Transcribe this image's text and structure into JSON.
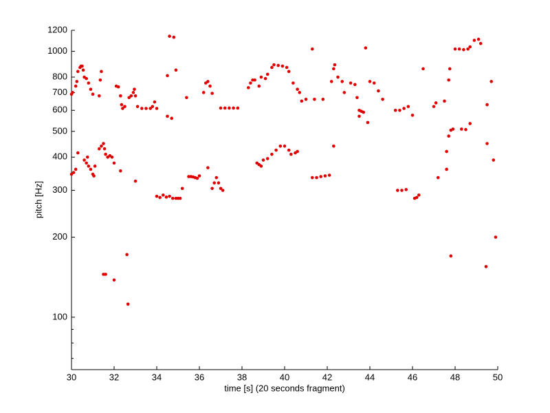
{
  "chart_data": {
    "type": "scatter",
    "xlabel": "time [s] (20 seconds fragment)",
    "ylabel": "pitch [Hz]",
    "color": "#e00000",
    "log_y": true,
    "xlim": [
      30,
      50
    ],
    "xticks": [
      30,
      32,
      34,
      36,
      38,
      40,
      42,
      44,
      46,
      48,
      50
    ],
    "ylim": [
      63.5,
      1200
    ],
    "yticks": [
      100,
      200,
      300,
      400,
      500,
      600,
      700,
      800,
      1000,
      1200
    ],
    "yminorticks": [
      70,
      80,
      90
    ],
    "x": [
      30.0,
      30.05,
      30.2,
      30.25,
      30.3,
      30.4,
      30.45,
      30.5,
      30.55,
      30.6,
      30.7,
      30.8,
      30.9,
      31.0,
      31.3,
      31.35,
      31.4,
      30.0,
      30.1,
      30.2,
      30.3,
      30.6,
      30.7,
      30.75,
      30.8,
      30.9,
      31.0,
      31.05,
      31.1,
      31.3,
      31.4,
      31.5,
      31.55,
      31.6,
      31.7,
      31.8,
      31.9,
      32.0,
      32.3,
      31.5,
      31.6,
      32.0,
      32.6,
      32.65,
      33.0,
      32.1,
      32.2,
      32.3,
      32.35,
      32.4,
      32.5,
      32.7,
      32.8,
      32.9,
      32.95,
      33.0,
      33.1,
      33.3,
      33.5,
      33.7,
      33.8,
      33.9,
      34.0,
      34.0,
      34.15,
      34.3,
      34.45,
      34.6,
      34.75,
      34.9,
      35.0,
      34.5,
      34.6,
      34.8,
      34.5,
      34.7,
      34.9,
      35.1,
      35.2,
      35.4,
      35.5,
      35.6,
      35.7,
      35.8,
      35.9,
      36.0,
      36.2,
      36.3,
      36.4,
      36.5,
      36.6,
      36.4,
      36.6,
      36.7,
      36.8,
      36.9,
      37.0,
      37.1,
      37.0,
      37.2,
      37.4,
      37.6,
      37.8,
      38.3,
      38.4,
      38.5,
      38.6,
      38.7,
      38.8,
      38.9,
      39.0,
      38.8,
      38.9,
      39.1,
      39.2,
      39.4,
      39.5,
      39.7,
      39.9,
      40.1,
      40.2,
      40.4,
      40.6,
      40.7,
      39.2,
      39.4,
      39.6,
      39.8,
      40.0,
      40.2,
      40.3,
      40.5,
      40.6,
      40.8,
      41.0,
      41.3,
      41.3,
      41.5,
      41.7,
      41.9,
      42.1,
      41.4,
      41.8,
      42.2,
      42.3,
      42.35,
      42.5,
      42.3,
      42.7,
      42.8,
      43.1,
      43.3,
      43.4,
      43.5,
      43.6,
      43.7,
      43.5,
      43.8,
      43.9,
      44.0,
      44.2,
      44.4,
      44.6,
      45.2,
      45.4,
      45.6,
      45.8,
      45.3,
      45.5,
      45.7,
      46.0,
      46.1,
      46.2,
      46.3,
      46.5,
      47.0,
      47.1,
      47.2,
      47.5,
      47.6,
      47.6,
      47.7,
      47.7,
      47.75,
      47.8,
      47.9,
      47.8,
      48.0,
      48.2,
      48.4,
      48.6,
      48.7,
      48.9,
      49.1,
      49.2,
      48.3,
      48.5,
      48.7,
      49.5,
      49.5,
      49.45,
      49.7,
      49.8,
      49.9
    ],
    "values": [
      690,
      700,
      740,
      770,
      840,
      870,
      880,
      880,
      850,
      800,
      790,
      760,
      720,
      690,
      680,
      780,
      840,
      345,
      350,
      360,
      415,
      390,
      380,
      400,
      370,
      360,
      345,
      340,
      370,
      430,
      440,
      450,
      430,
      410,
      400,
      405,
      400,
      380,
      355,
      145,
      145,
      138,
      172,
      112,
      325,
      740,
      735,
      680,
      630,
      610,
      620,
      670,
      680,
      700,
      720,
      680,
      620,
      610,
      610,
      610,
      620,
      645,
      610,
      285,
      282,
      288,
      283,
      285,
      280,
      280,
      280,
      810,
      1140,
      1130,
      570,
      560,
      850,
      280,
      305,
      670,
      338,
      338,
      337,
      335,
      333,
      340,
      700,
      760,
      770,
      740,
      695,
      365,
      305,
      320,
      335,
      320,
      305,
      300,
      612,
      612,
      612,
      612,
      612,
      730,
      760,
      780,
      780,
      380,
      375,
      370,
      390,
      740,
      800,
      790,
      820,
      870,
      890,
      885,
      880,
      870,
      840,
      760,
      720,
      700,
      395,
      410,
      425,
      440,
      440,
      425,
      410,
      415,
      420,
      650,
      660,
      1020,
      335,
      335,
      338,
      340,
      342,
      660,
      660,
      770,
      860,
      890,
      800,
      440,
      770,
      700,
      760,
      750,
      670,
      600,
      595,
      590,
      570,
      1030,
      540,
      770,
      760,
      710,
      660,
      600,
      600,
      610,
      620,
      300,
      300,
      302,
      575,
      280,
      282,
      288,
      860,
      620,
      640,
      335,
      650,
      360,
      420,
      480,
      780,
      860,
      505,
      510,
      170,
      1020,
      1020,
      1015,
      1020,
      1040,
      1100,
      1110,
      1070,
      510,
      508,
      535,
      450,
      630,
      155,
      770,
      390,
      200
    ]
  }
}
